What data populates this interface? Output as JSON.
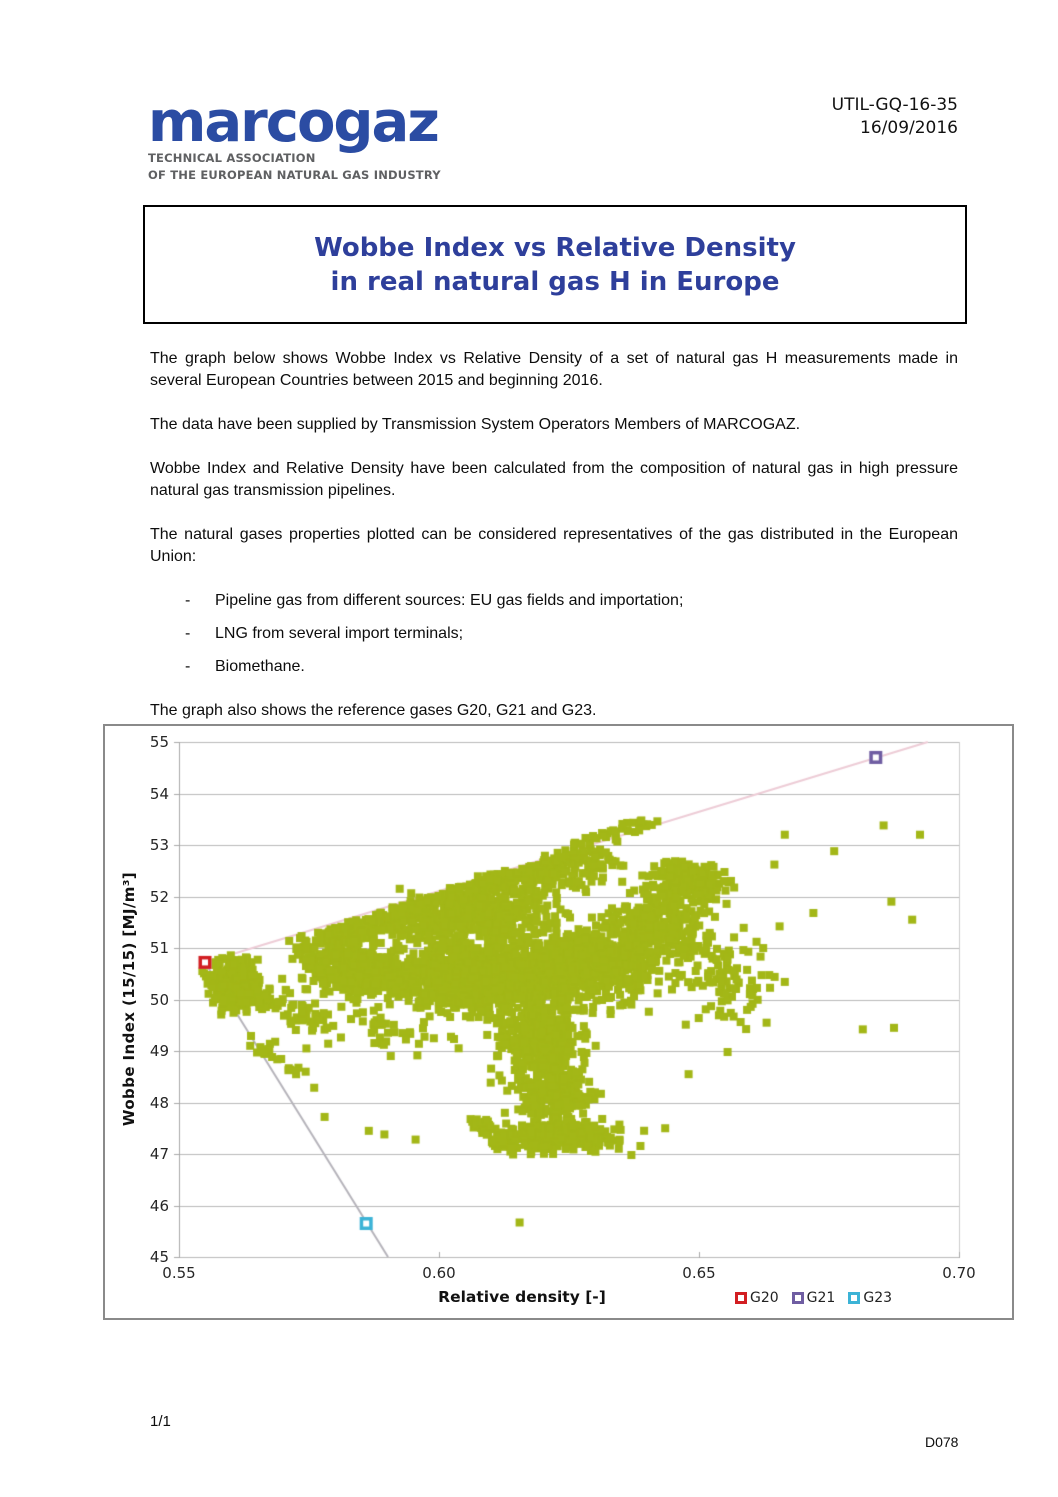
{
  "document": {
    "ref_number": "UTIL-GQ-16-35",
    "date": "16/09/2016",
    "page_number": "1/1",
    "doc_code": "D078"
  },
  "logo": {
    "wordmark": "marcogaz",
    "tagline_line1": "TECHNICAL ASSOCIATION",
    "tagline_line2": "OF THE EUROPEAN NATURAL GAS INDUSTRY",
    "brand_color": "#2b4ca3"
  },
  "title": {
    "line1": "Wobbe Index vs Relative Density",
    "line2": "in real natural gas H in Europe",
    "color": "#2e3f9b"
  },
  "body": {
    "paragraph1": "The graph below shows Wobbe Index vs Relative Density of a set of natural gas H measurements made in several European Countries between 2015 and beginning 2016.",
    "paragraph2": "The data have been supplied by Transmission System Operators Members of MARCOGAZ.",
    "paragraph3": "Wobbe Index and Relative Density have been calculated from the composition of natural gas in high pressure natural gas transmission pipelines.",
    "paragraph4": "The natural gases properties plotted can be considered representatives of the gas distributed in the European Union:",
    "bullets": [
      "Pipeline gas from different sources: EU gas fields and importation;",
      "LNG from several import terminals;",
      "Biomethane."
    ],
    "paragraph5": "The graph also shows the reference gases G20, G21 and G23."
  },
  "chart_data": {
    "type": "scatter",
    "xlabel": "Relative density [-]",
    "ylabel": "Wobbe Index (15/15) [MJ/m³]",
    "xlim": [
      0.55,
      0.7
    ],
    "ylim": [
      45,
      55
    ],
    "x_ticks": [
      {
        "v": 0.55,
        "label": "0.55"
      },
      {
        "v": 0.6,
        "label": "0.60"
      },
      {
        "v": 0.65,
        "label": "0.65"
      },
      {
        "v": 0.7,
        "label": "0.70"
      }
    ],
    "y_ticks": [
      {
        "v": 45,
        "label": "45"
      },
      {
        "v": 46,
        "label": "46"
      },
      {
        "v": 47,
        "label": "47"
      },
      {
        "v": 48,
        "label": "48"
      },
      {
        "v": 49,
        "label": "49"
      },
      {
        "v": 50,
        "label": "50"
      },
      {
        "v": 51,
        "label": "51"
      },
      {
        "v": 52,
        "label": "52"
      },
      {
        "v": 53,
        "label": "53"
      },
      {
        "v": 54,
        "label": "54"
      },
      {
        "v": 55,
        "label": "55"
      }
    ],
    "grid": "horizontal gridlines at integer Wobbe values",
    "legend_position": "bottom-right",
    "colors": {
      "grid": "#b9b9b9",
      "axis": "#a8a8a8",
      "plot_right_border": "#cccccc"
    },
    "series": [
      {
        "name": "Natural gas H measurements (TSO data, Europe 2015 - early 2016)",
        "color": "#a3b717",
        "marker": "square"
      }
    ],
    "reference_points": [
      {
        "name": "G20",
        "x": 0.555,
        "y": 50.72,
        "color": "#d21e22"
      },
      {
        "name": "G21",
        "x": 0.684,
        "y": 54.7,
        "color": "#6f5da2"
      },
      {
        "name": "G23",
        "x": 0.586,
        "y": 45.65,
        "color": "#3cb3d6"
      }
    ],
    "reference_lines": [
      {
        "name": "G20-G21 mixing line",
        "from": [
          0.555,
          50.72
        ],
        "to": [
          0.694,
          55.0
        ],
        "color": "#edccd6"
      },
      {
        "name": "G20-G23 mixing line",
        "from": [
          0.555,
          50.72
        ],
        "to": [
          0.5902,
          45.0
        ],
        "color": "#b5b3ba"
      }
    ],
    "legend": [
      {
        "label": "G20",
        "color": "#d21e22"
      },
      {
        "label": "G21",
        "color": "#6f5da2"
      },
      {
        "label": "G23",
        "color": "#3cb3d6"
      }
    ],
    "scatter_cloud": {
      "description": "Dense cloud of ~4500 measured gas-H points; wedge starts at G20, dense band 50-51.5 across 0.56-0.66, upper edge hugging the G20-G21 line up to ~53, central column down to 47, bottom blob ~47.3, sparse outliers to 0.69.",
      "clusters": [
        {
          "cx": 0.5608,
          "cy": 50.32,
          "sx": 0.004,
          "sy": 0.42,
          "n": 320
        },
        {
          "cx": 0.5855,
          "cy": 50.55,
          "sx": 0.009,
          "sy": 0.38,
          "n": 380
        },
        {
          "cx": 0.6065,
          "cy": 50.45,
          "sx": 0.012,
          "sy": 0.52,
          "n": 750
        },
        {
          "cx": 0.6275,
          "cy": 50.65,
          "sx": 0.011,
          "sy": 0.58,
          "n": 650
        },
        {
          "cx": 0.607,
          "cy": 51.55,
          "sx": 0.013,
          "sy": 0.5,
          "n": 380
        },
        {
          "cx": 0.648,
          "cy": 52.25,
          "sx": 0.006,
          "sy": 0.32,
          "n": 230
        },
        {
          "cx": 0.6415,
          "cy": 51.35,
          "sx": 0.009,
          "sy": 0.55,
          "n": 300
        },
        {
          "cx": 0.619,
          "cy": 49.2,
          "sx": 0.007,
          "sy": 0.7,
          "n": 430
        },
        {
          "cx": 0.6225,
          "cy": 48.1,
          "sx": 0.0065,
          "sy": 0.38,
          "n": 190
        },
        {
          "cx": 0.6235,
          "cy": 47.35,
          "sx": 0.009,
          "sy": 0.24,
          "n": 270
        },
        {
          "cx": 0.655,
          "cy": 50.4,
          "sx": 0.0075,
          "sy": 0.75,
          "n": 100
        },
        {
          "cx": 0.591,
          "cy": 49.4,
          "sx": 0.011,
          "sy": 0.55,
          "n": 45
        }
      ],
      "bands": [
        {
          "x1": 0.5575,
          "y1": 50.55,
          "x2": 0.579,
          "y2": 49.45,
          "jx": 0.002,
          "jy": 0.28,
          "n": 90,
          "clip_below_line": false
        },
        {
          "x1": 0.575,
          "y1": 51.15,
          "x2": 0.631,
          "y2": 52.78,
          "jx": 0.006,
          "jy": 0.5,
          "n": 600,
          "clip_below_line": true
        },
        {
          "x1": 0.603,
          "y1": 52.15,
          "x2": 0.629,
          "y2": 52.95,
          "jx": 0.0018,
          "jy": 0.09,
          "n": 45,
          "clip_below_line": false
        },
        {
          "x1": 0.625,
          "y1": 52.95,
          "x2": 0.642,
          "y2": 53.5,
          "jx": 0.0018,
          "jy": 0.09,
          "n": 35,
          "clip_below_line": false
        },
        {
          "x1": 0.5635,
          "y1": 49.35,
          "x2": 0.576,
          "y2": 48.3,
          "jx": 0.0018,
          "jy": 0.18,
          "n": 20,
          "clip_below_line": false
        },
        {
          "x1": 0.607,
          "y1": 47.65,
          "x2": 0.616,
          "y2": 47.05,
          "jx": 0.0025,
          "jy": 0.15,
          "n": 60,
          "clip_below_line": false
        }
      ],
      "outliers": [
        [
          0.6155,
          45.67
        ],
        [
          0.578,
          47.72
        ],
        [
          0.5865,
          47.45
        ],
        [
          0.5895,
          47.38
        ],
        [
          0.5955,
          47.28
        ],
        [
          0.5685,
          49.18
        ],
        [
          0.566,
          48.98
        ],
        [
          0.6665,
          53.2
        ],
        [
          0.6855,
          53.38
        ],
        [
          0.6925,
          53.2
        ],
        [
          0.676,
          52.88
        ],
        [
          0.6645,
          52.62
        ],
        [
          0.6655,
          51.42
        ],
        [
          0.672,
          51.68
        ],
        [
          0.687,
          51.9
        ],
        [
          0.691,
          51.55
        ],
        [
          0.6815,
          49.42
        ],
        [
          0.6875,
          49.45
        ],
        [
          0.663,
          49.55
        ],
        [
          0.6555,
          48.98
        ],
        [
          0.648,
          48.55
        ],
        [
          0.6435,
          47.5
        ],
        [
          0.637,
          46.98
        ],
        [
          0.5745,
          49.05
        ],
        [
          0.5725,
          48.62
        ]
      ]
    }
  }
}
